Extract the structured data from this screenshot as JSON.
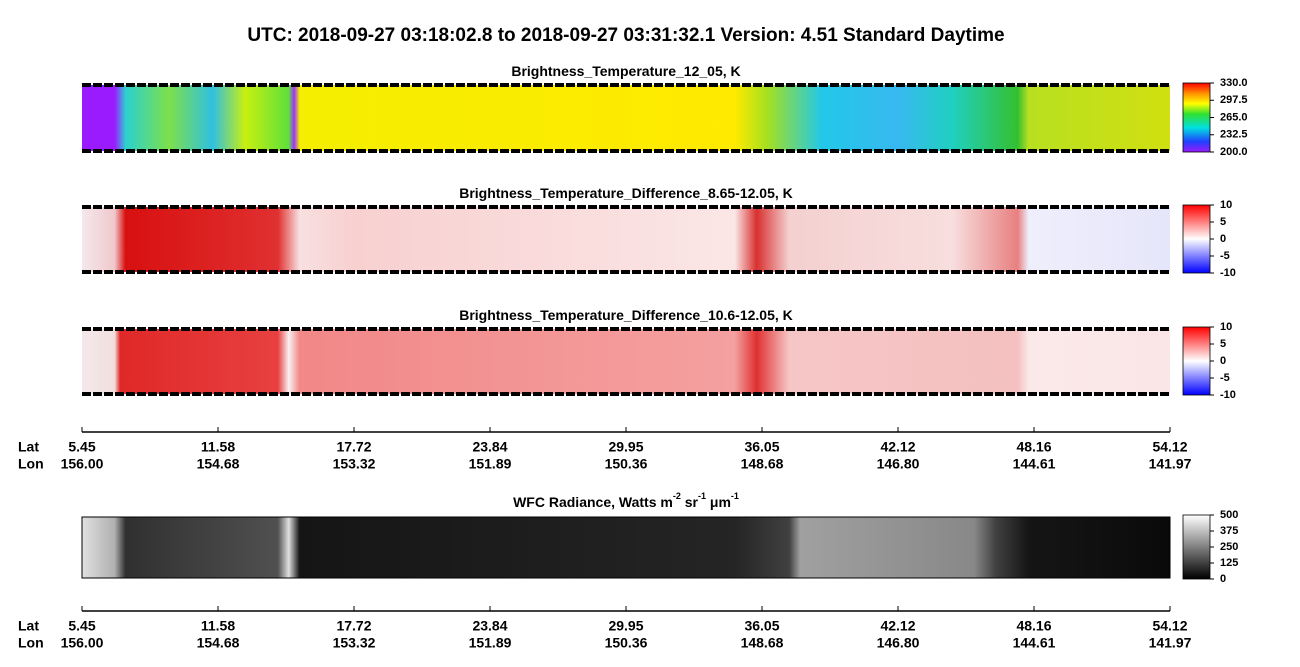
{
  "title": "UTC:  2018-09-27   03:18:02.8  to  2018-09-27   03:31:32.1    Version: 4.51  Standard Daytime",
  "panels": [
    {
      "title_parts": [
        "Brightness_Temperature_12_05, K"
      ],
      "colorbar": [
        "330.0",
        "297.5",
        "265.0",
        "232.5",
        "200.0"
      ]
    },
    {
      "title_parts": [
        "Brightness_Temperature_Difference_8.65-12.05, K"
      ],
      "colorbar": [
        "10",
        "5",
        "0",
        "-5",
        "-10"
      ]
    },
    {
      "title_parts": [
        "Brightness_Temperature_Difference_10.6-12.05, K"
      ],
      "colorbar": [
        "10",
        "5",
        "0",
        "-5",
        "-10"
      ]
    },
    {
      "title_parts": [
        "WFC Radiance, Watts m",
        "-2",
        " sr",
        "-1",
        " μm",
        "-1"
      ],
      "colorbar": [
        "500",
        "375",
        "250",
        "125",
        "0"
      ]
    }
  ],
  "axes": [
    {
      "lat_label": "Lat",
      "lon_label": "Lon",
      "lat": [
        "5.45",
        "11.58",
        "17.72",
        "23.84",
        "29.95",
        "36.05",
        "42.12",
        "48.16",
        "54.12"
      ],
      "lon": [
        "156.00",
        "154.68",
        "153.32",
        "151.89",
        "150.36",
        "148.68",
        "146.80",
        "144.61",
        "141.97"
      ]
    },
    {
      "lat_label": "Lat",
      "lon_label": "Lon",
      "lat": [
        "5.45",
        "11.58",
        "17.72",
        "23.84",
        "29.95",
        "36.05",
        "42.12",
        "48.16",
        "54.12"
      ],
      "lon": [
        "156.00",
        "154.68",
        "153.32",
        "151.89",
        "150.36",
        "148.68",
        "146.80",
        "144.61",
        "141.97"
      ]
    }
  ]
}
